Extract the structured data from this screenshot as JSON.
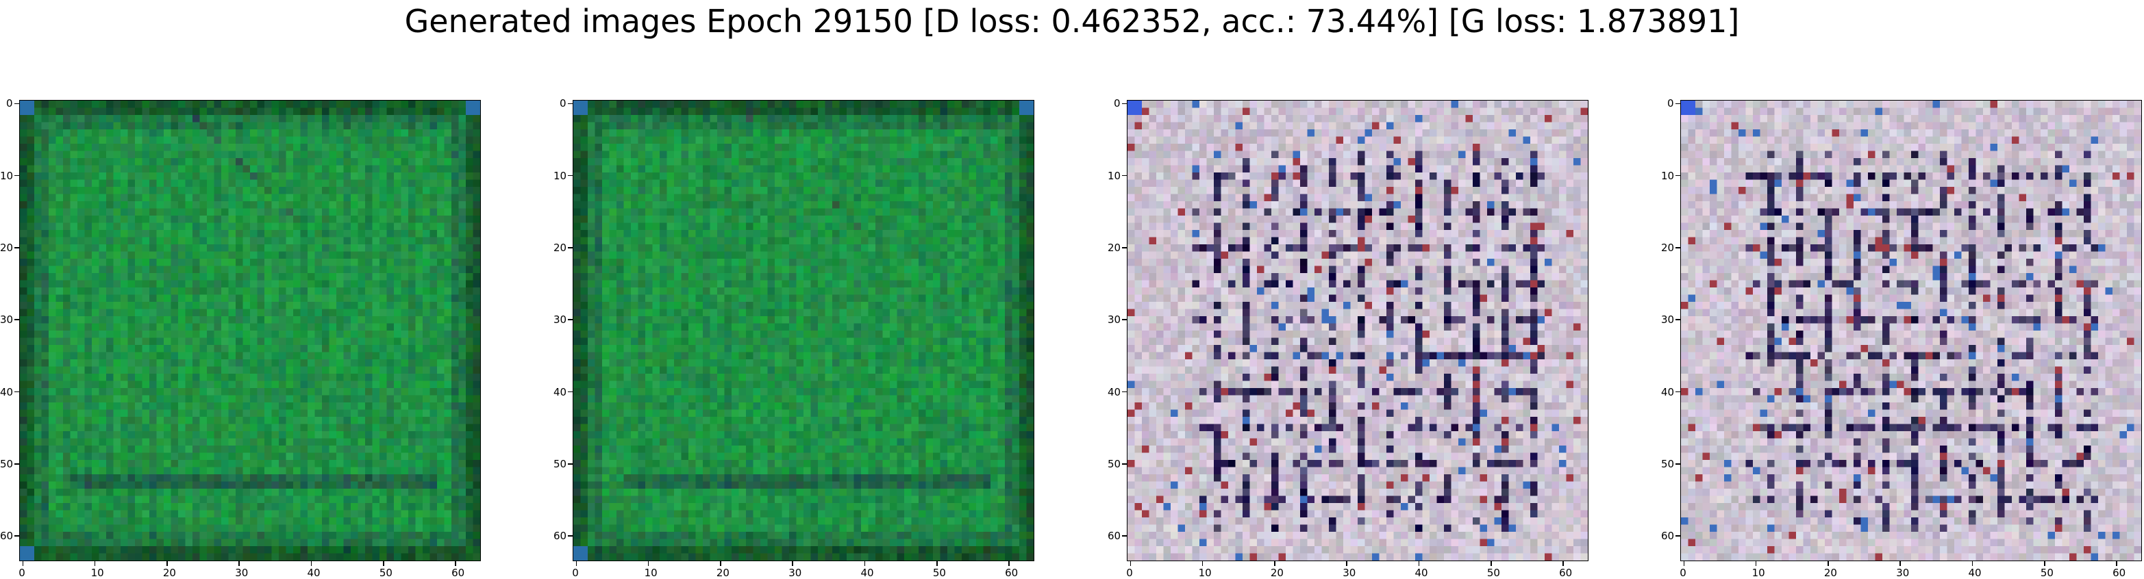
{
  "figure": {
    "title": "Generated images Epoch 29150 [D loss: 0.462352, acc.: 73.44%] [G loss: 1.873891]"
  },
  "axes_ticks": {
    "x": [
      "0",
      "10",
      "20",
      "30",
      "40",
      "50",
      "60"
    ],
    "y": [
      "0",
      "10",
      "20",
      "30",
      "40",
      "50",
      "60"
    ]
  },
  "image_grid_size": 64,
  "panels": [
    {
      "name": "generated-image-1",
      "palette": "green",
      "base_color": "#1a9a4a"
    },
    {
      "name": "generated-image-2",
      "palette": "green",
      "base_color": "#1a9a4a"
    },
    {
      "name": "generated-image-3",
      "palette": "grey-noise",
      "base_color": "#c9c0cc"
    },
    {
      "name": "generated-image-4",
      "palette": "grey-noise",
      "base_color": "#c9c0cc"
    }
  ]
}
